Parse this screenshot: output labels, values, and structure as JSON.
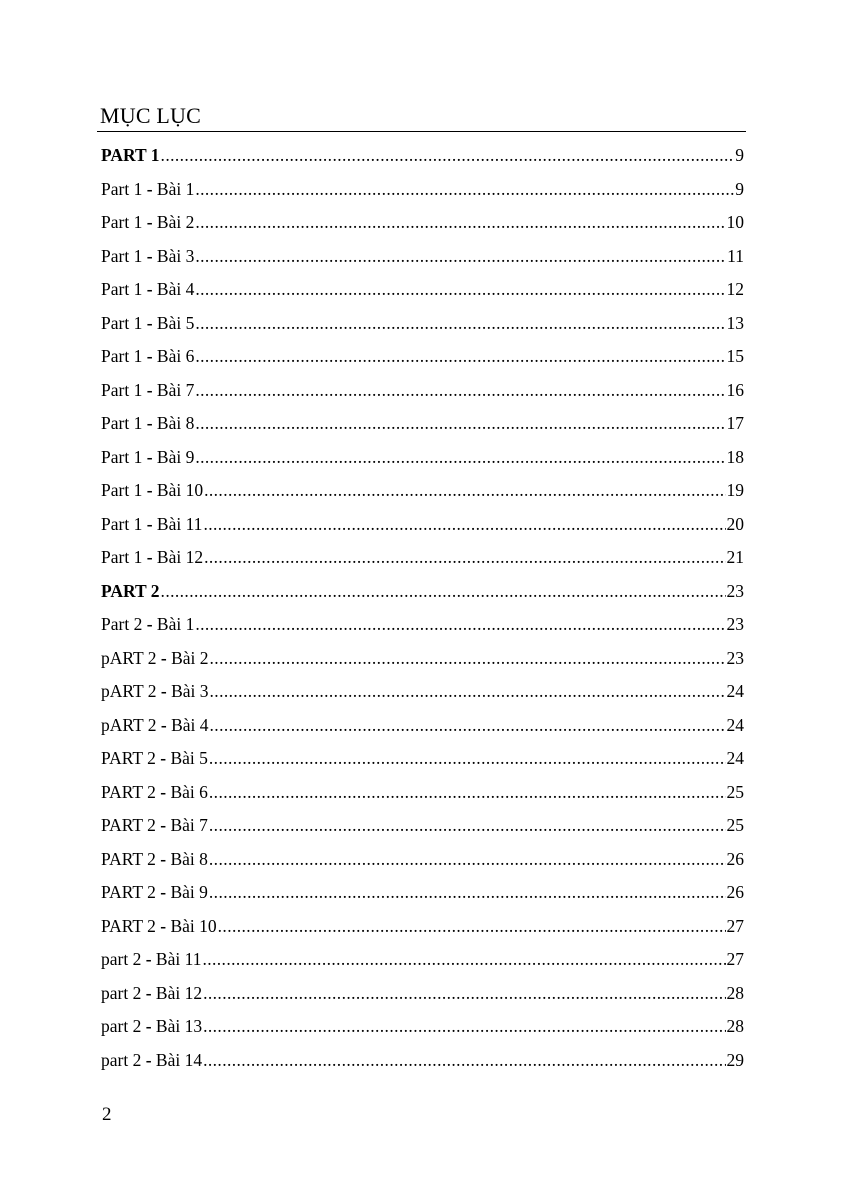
{
  "title": "MỤC LỤC",
  "page_number": "2",
  "entries": [
    {
      "label": "PART 1",
      "page": "9",
      "bold": true
    },
    {
      "label": "Part 1 - Bài 1",
      "page": "9"
    },
    {
      "label": "Part 1 - Bài 2",
      "page": "10"
    },
    {
      "label": "Part 1 - Bài 3",
      "page": "11"
    },
    {
      "label": "Part 1 - Bài 4",
      "page": "12"
    },
    {
      "label": "Part 1 - Bài 5",
      "page": "13"
    },
    {
      "label": "Part 1 - Bài 6",
      "page": "15"
    },
    {
      "label": "Part 1 - Bài 7",
      "page": "16"
    },
    {
      "label": "Part 1 - Bài 8",
      "page": "17"
    },
    {
      "label": "Part 1 - Bài 9",
      "page": "18"
    },
    {
      "label": "Part 1 - Bài 10",
      "page": "19"
    },
    {
      "label": "Part 1 - Bài 11",
      "page": "20"
    },
    {
      "label": "Part 1 - Bài 12",
      "page": "21"
    },
    {
      "label": "PART 2",
      "page": "23",
      "bold": true
    },
    {
      "label": "Part 2 - Bài 1",
      "page": "23"
    },
    {
      "label": "pART 2 - Bài 2",
      "page": "23"
    },
    {
      "label": "pART 2 - Bài 3",
      "page": "24"
    },
    {
      "label": "pART 2 - Bài 4",
      "page": "24"
    },
    {
      "label": "PART 2 - Bài 5",
      "page": "24"
    },
    {
      "label": "PART 2 - Bài 6",
      "page": "25"
    },
    {
      "label": "PART 2 - Bài 7",
      "page": "25"
    },
    {
      "label": "PART 2 - Bài 8",
      "page": "26"
    },
    {
      "label": "PART 2 - Bài 9",
      "page": "26"
    },
    {
      "label": "PART 2 - Bài 10",
      "page": "27"
    },
    {
      "label": "part 2 - Bài 11",
      "page": "27"
    },
    {
      "label": "part 2 - Bài 12",
      "page": "28"
    },
    {
      "label": "part 2 - Bài 13",
      "page": "28"
    },
    {
      "label": "part 2 - Bài 14",
      "page": "29"
    }
  ]
}
